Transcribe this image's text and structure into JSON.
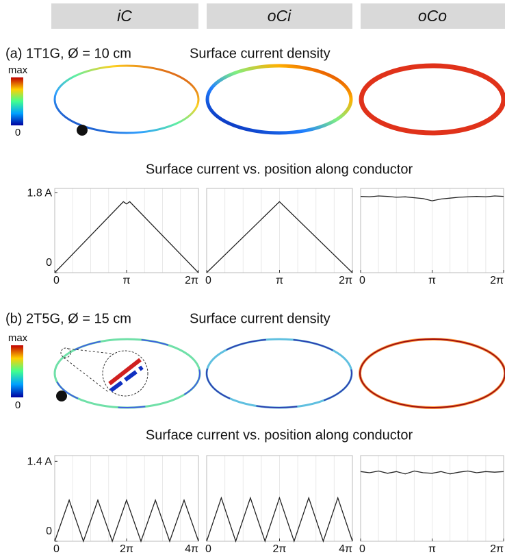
{
  "columns": [
    "iC",
    "oCi",
    "oCo"
  ],
  "panels": [
    {
      "label": "(a) 1T1G, Ø = 10 cm",
      "heading": "Surface current density",
      "colorbar": {
        "max": "max",
        "min": "0"
      },
      "subtitle": "Surface current vs. position along conductor"
    },
    {
      "label": "(b) 2T5G, Ø = 15 cm",
      "heading": "Surface current density",
      "colorbar": {
        "max": "max",
        "min": "0"
      },
      "subtitle": "Surface current vs. position along conductor"
    }
  ],
  "chart_data": [
    {
      "type": "line",
      "color": "#222",
      "grid": true,
      "x": [
        0,
        3.0,
        3.14,
        3.28,
        6.28
      ],
      "values": [
        0,
        1.6,
        1.55,
        1.6,
        0
      ],
      "xlim": [
        0,
        6.2832
      ],
      "ylim": [
        0,
        1.9
      ],
      "xticks": [
        0,
        {
          "value": 3.1416,
          "label": "π"
        },
        {
          "value": 6.2832,
          "label": "2π"
        }
      ],
      "yticks": [
        0,
        {
          "value": 1.8,
          "label": "1.8 A"
        }
      ]
    },
    {
      "type": "line",
      "color": "#222",
      "grid": true,
      "x": [
        0,
        3.14,
        6.28
      ],
      "values": [
        0,
        1.6,
        0
      ],
      "xlim": [
        0,
        6.2832
      ],
      "ylim": [
        0,
        1.9
      ],
      "xticks": [
        0,
        {
          "value": 3.1416,
          "label": "π"
        },
        {
          "value": 6.2832,
          "label": "2π"
        }
      ]
    },
    {
      "type": "line",
      "color": "#222",
      "grid": true,
      "x": [
        0,
        0.39,
        0.79,
        1.18,
        1.57,
        1.96,
        2.36,
        2.75,
        3.14,
        3.53,
        3.93,
        4.32,
        4.71,
        5.1,
        5.5,
        5.89,
        6.28
      ],
      "values": [
        1.72,
        1.71,
        1.73,
        1.72,
        1.7,
        1.71,
        1.69,
        1.67,
        1.62,
        1.66,
        1.68,
        1.7,
        1.71,
        1.72,
        1.71,
        1.73,
        1.72
      ],
      "xlim": [
        0,
        6.2832
      ],
      "ylim": [
        0,
        1.9
      ],
      "xticks": [
        0,
        {
          "value": 3.1416,
          "label": "π"
        },
        {
          "value": 6.2832,
          "label": "2π"
        }
      ]
    },
    {
      "type": "line",
      "color": "#222",
      "grid": true,
      "x": [
        0,
        1.26,
        2.51,
        3.77,
        5.03,
        6.28,
        7.54,
        8.8,
        10.05,
        11.31,
        12.57
      ],
      "values": [
        0,
        0.72,
        0,
        0.72,
        0,
        0.72,
        0,
        0.72,
        0,
        0.72,
        0
      ],
      "xlim": [
        0,
        12.566
      ],
      "ylim": [
        0,
        1.5
      ],
      "xticks": [
        0,
        {
          "value": 6.2832,
          "label": "2π"
        },
        {
          "value": 12.566,
          "label": "4π"
        }
      ],
      "yticks": [
        0,
        {
          "value": 1.4,
          "label": "1.4 A"
        }
      ]
    },
    {
      "type": "line",
      "color": "#222",
      "grid": true,
      "x": [
        0,
        1.26,
        2.51,
        3.77,
        5.03,
        6.28,
        7.54,
        8.8,
        10.05,
        11.31,
        12.57
      ],
      "values": [
        0,
        0.76,
        0,
        0.76,
        0,
        0.76,
        0,
        0.76,
        0,
        0.76,
        0
      ],
      "xlim": [
        0,
        12.566
      ],
      "ylim": [
        0,
        1.5
      ],
      "xticks": [
        0,
        {
          "value": 6.2832,
          "label": "2π"
        },
        {
          "value": 12.566,
          "label": "4π"
        }
      ]
    },
    {
      "type": "line",
      "color": "#222",
      "grid": true,
      "x": [
        0,
        0.39,
        0.79,
        1.18,
        1.57,
        1.96,
        2.36,
        2.75,
        3.14,
        3.53,
        3.93,
        4.32,
        4.71,
        5.1,
        5.5,
        5.89,
        6.28
      ],
      "values": [
        1.22,
        1.2,
        1.23,
        1.19,
        1.22,
        1.18,
        1.23,
        1.2,
        1.19,
        1.22,
        1.18,
        1.21,
        1.23,
        1.2,
        1.22,
        1.21,
        1.22
      ],
      "xlim": [
        0,
        6.2832
      ],
      "ylim": [
        0,
        1.5
      ],
      "xticks": [
        0,
        {
          "value": 3.1416,
          "label": "π"
        },
        {
          "value": 6.2832,
          "label": "2π"
        }
      ]
    }
  ]
}
